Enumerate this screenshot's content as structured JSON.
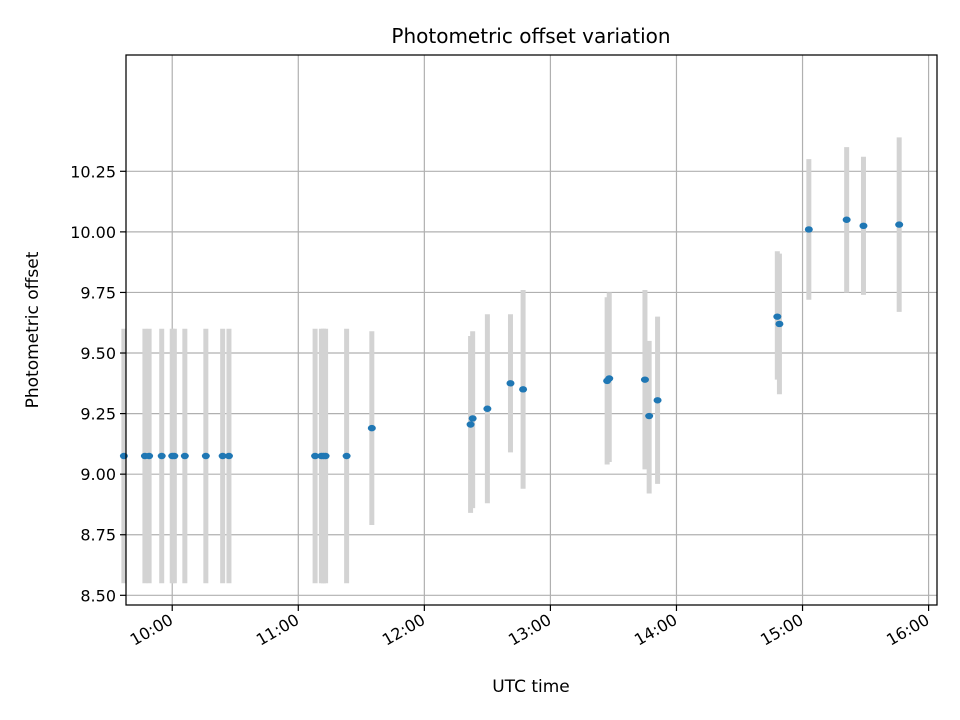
{
  "chart_data": {
    "type": "scatter",
    "title": "Photometric offset variation",
    "xlabel": "UTC time",
    "ylabel": "Photometric offset",
    "x_ticks": [
      "10:00",
      "11:00",
      "12:00",
      "13:00",
      "14:00",
      "15:00",
      "16:00"
    ],
    "y_ticks": [
      "8.50",
      "8.75",
      "9.00",
      "9.25",
      "9.50",
      "9.75",
      "10.00",
      "10.25"
    ],
    "xlim": [
      "09:38",
      "16:04"
    ],
    "ylim": [
      8.46,
      10.73
    ],
    "grid": true,
    "marker_color": "#1f77b4",
    "errorbar_color": "#d3d3d3",
    "series": [
      {
        "points": [
          {
            "t": "09:37",
            "y": 9.075,
            "lo": 8.55,
            "hi": 9.6
          },
          {
            "t": "09:47",
            "y": 9.075,
            "lo": 8.55,
            "hi": 9.6
          },
          {
            "t": "09:49",
            "y": 9.075,
            "lo": 8.55,
            "hi": 9.6
          },
          {
            "t": "09:55",
            "y": 9.075,
            "lo": 8.55,
            "hi": 9.6
          },
          {
            "t": "10:00",
            "y": 9.075,
            "lo": 8.55,
            "hi": 9.6
          },
          {
            "t": "10:01",
            "y": 9.075,
            "lo": 8.55,
            "hi": 9.6
          },
          {
            "t": "10:06",
            "y": 9.075,
            "lo": 8.55,
            "hi": 9.6
          },
          {
            "t": "10:16",
            "y": 9.075,
            "lo": 8.55,
            "hi": 9.6
          },
          {
            "t": "10:24",
            "y": 9.075,
            "lo": 8.55,
            "hi": 9.6
          },
          {
            "t": "10:27",
            "y": 9.075,
            "lo": 8.55,
            "hi": 9.6
          },
          {
            "t": "11:08",
            "y": 9.075,
            "lo": 8.55,
            "hi": 9.6
          },
          {
            "t": "11:11",
            "y": 9.075,
            "lo": 8.55,
            "hi": 9.6
          },
          {
            "t": "11:12",
            "y": 9.075,
            "lo": 8.55,
            "hi": 9.6
          },
          {
            "t": "11:13",
            "y": 9.075,
            "lo": 8.55,
            "hi": 9.6
          },
          {
            "t": "11:23",
            "y": 9.075,
            "lo": 8.55,
            "hi": 9.6
          },
          {
            "t": "11:35",
            "y": 9.19,
            "lo": 8.79,
            "hi": 9.59
          },
          {
            "t": "12:22",
            "y": 9.205,
            "lo": 8.84,
            "hi": 9.57
          },
          {
            "t": "12:23",
            "y": 9.23,
            "lo": 8.86,
            "hi": 9.59
          },
          {
            "t": "12:30",
            "y": 9.27,
            "lo": 8.88,
            "hi": 9.66
          },
          {
            "t": "12:41",
            "y": 9.375,
            "lo": 9.09,
            "hi": 9.66
          },
          {
            "t": "12:47",
            "y": 9.35,
            "lo": 8.94,
            "hi": 9.76
          },
          {
            "t": "13:27",
            "y": 9.385,
            "lo": 9.04,
            "hi": 9.73
          },
          {
            "t": "13:28",
            "y": 9.395,
            "lo": 9.05,
            "hi": 9.75
          },
          {
            "t": "13:45",
            "y": 9.39,
            "lo": 9.02,
            "hi": 9.76
          },
          {
            "t": "13:47",
            "y": 9.24,
            "lo": 8.92,
            "hi": 9.55
          },
          {
            "t": "13:51",
            "y": 9.305,
            "lo": 8.96,
            "hi": 9.65
          },
          {
            "t": "14:48",
            "y": 9.65,
            "lo": 9.39,
            "hi": 9.92
          },
          {
            "t": "14:49",
            "y": 9.62,
            "lo": 9.33,
            "hi": 9.91
          },
          {
            "t": "15:03",
            "y": 10.01,
            "lo": 9.72,
            "hi": 10.3
          },
          {
            "t": "15:21",
            "y": 10.05,
            "lo": 9.75,
            "hi": 10.35
          },
          {
            "t": "15:29",
            "y": 10.025,
            "lo": 9.74,
            "hi": 10.31
          },
          {
            "t": "15:46",
            "y": 10.03,
            "lo": 9.67,
            "hi": 10.39
          }
        ]
      }
    ]
  }
}
